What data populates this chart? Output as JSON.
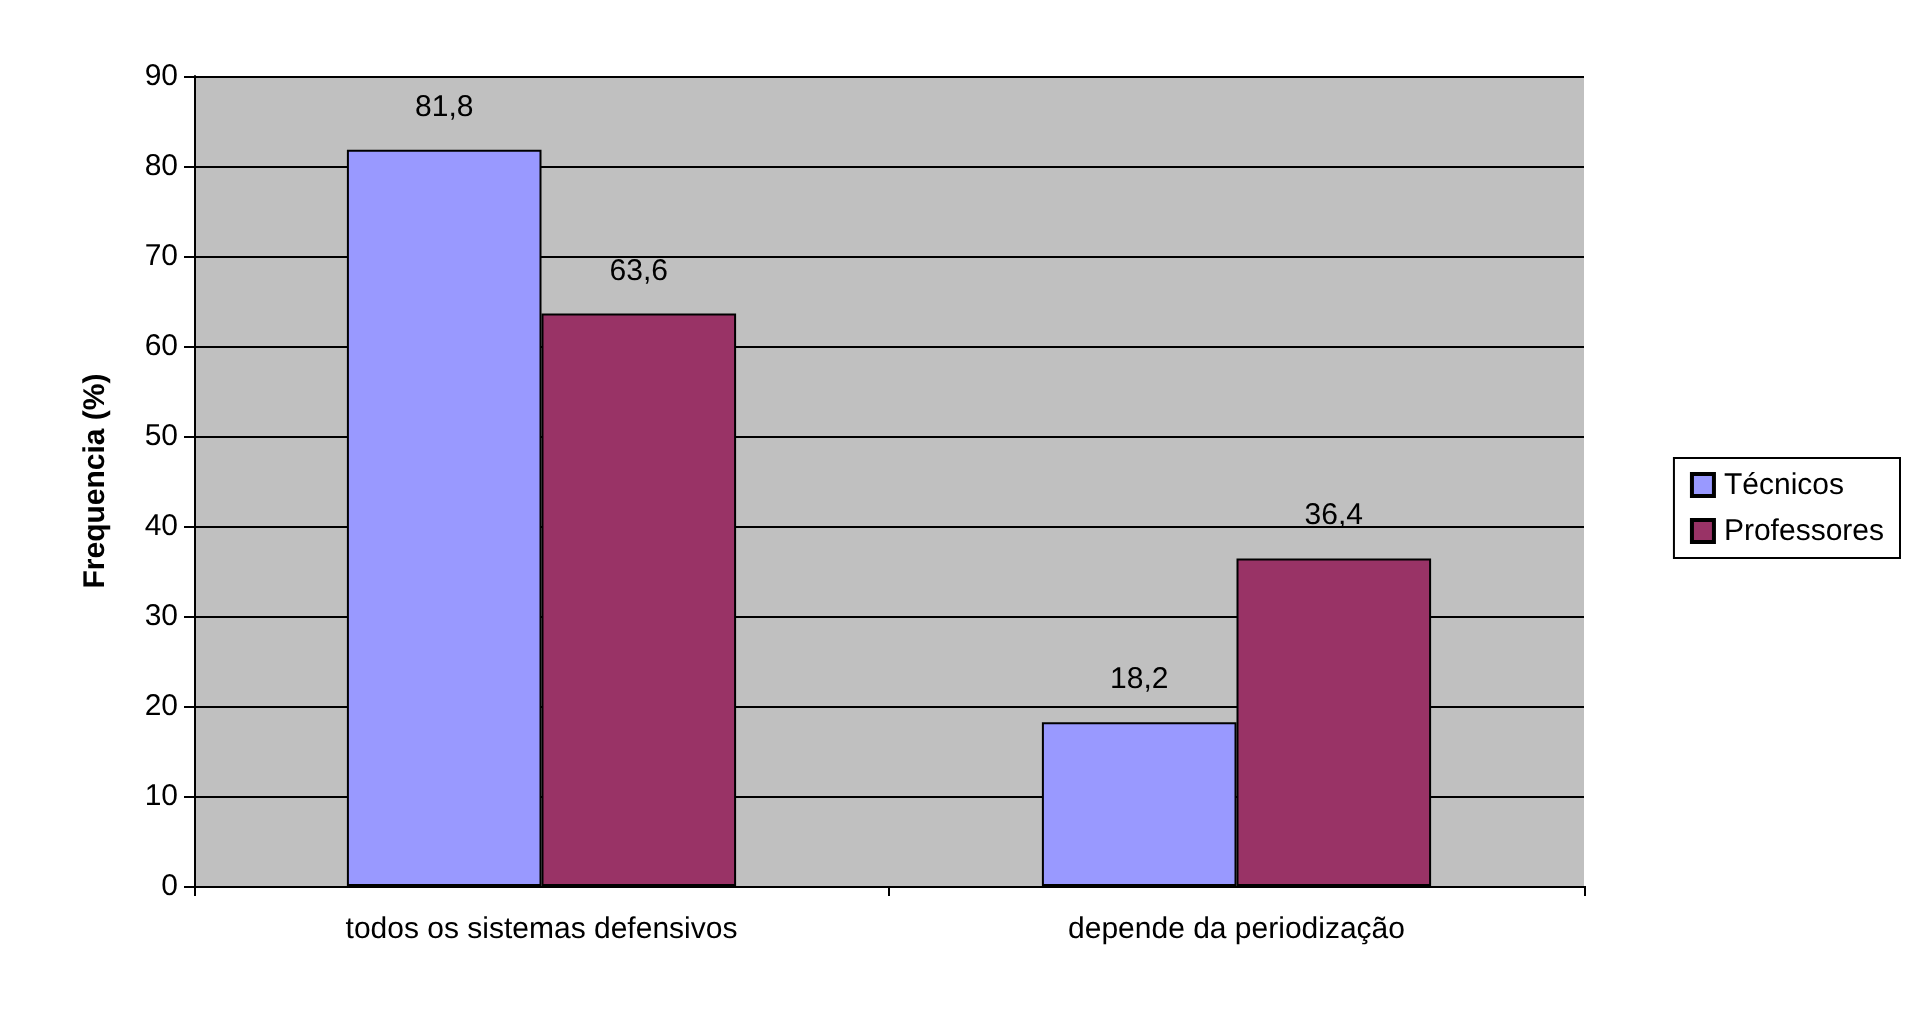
{
  "chart_data": {
    "type": "bar",
    "ylabel": "Frequencia (%)",
    "categories": [
      "todos os sistemas defensivos",
      "depende da periodização"
    ],
    "series": [
      {
        "name": "Técnicos",
        "color": "#9999ff",
        "values": [
          81.8,
          18.2
        ],
        "value_labels": [
          "81,8",
          "18,2"
        ]
      },
      {
        "name": "Professores",
        "color": "#993366",
        "values": [
          63.6,
          36.4
        ],
        "value_labels": [
          "63,6",
          "36,4"
        ]
      }
    ],
    "ylim": [
      0,
      90
    ],
    "yticks": [
      0,
      10,
      20,
      30,
      40,
      50,
      60,
      70,
      80,
      90
    ],
    "grid": "y",
    "legend": "right"
  }
}
